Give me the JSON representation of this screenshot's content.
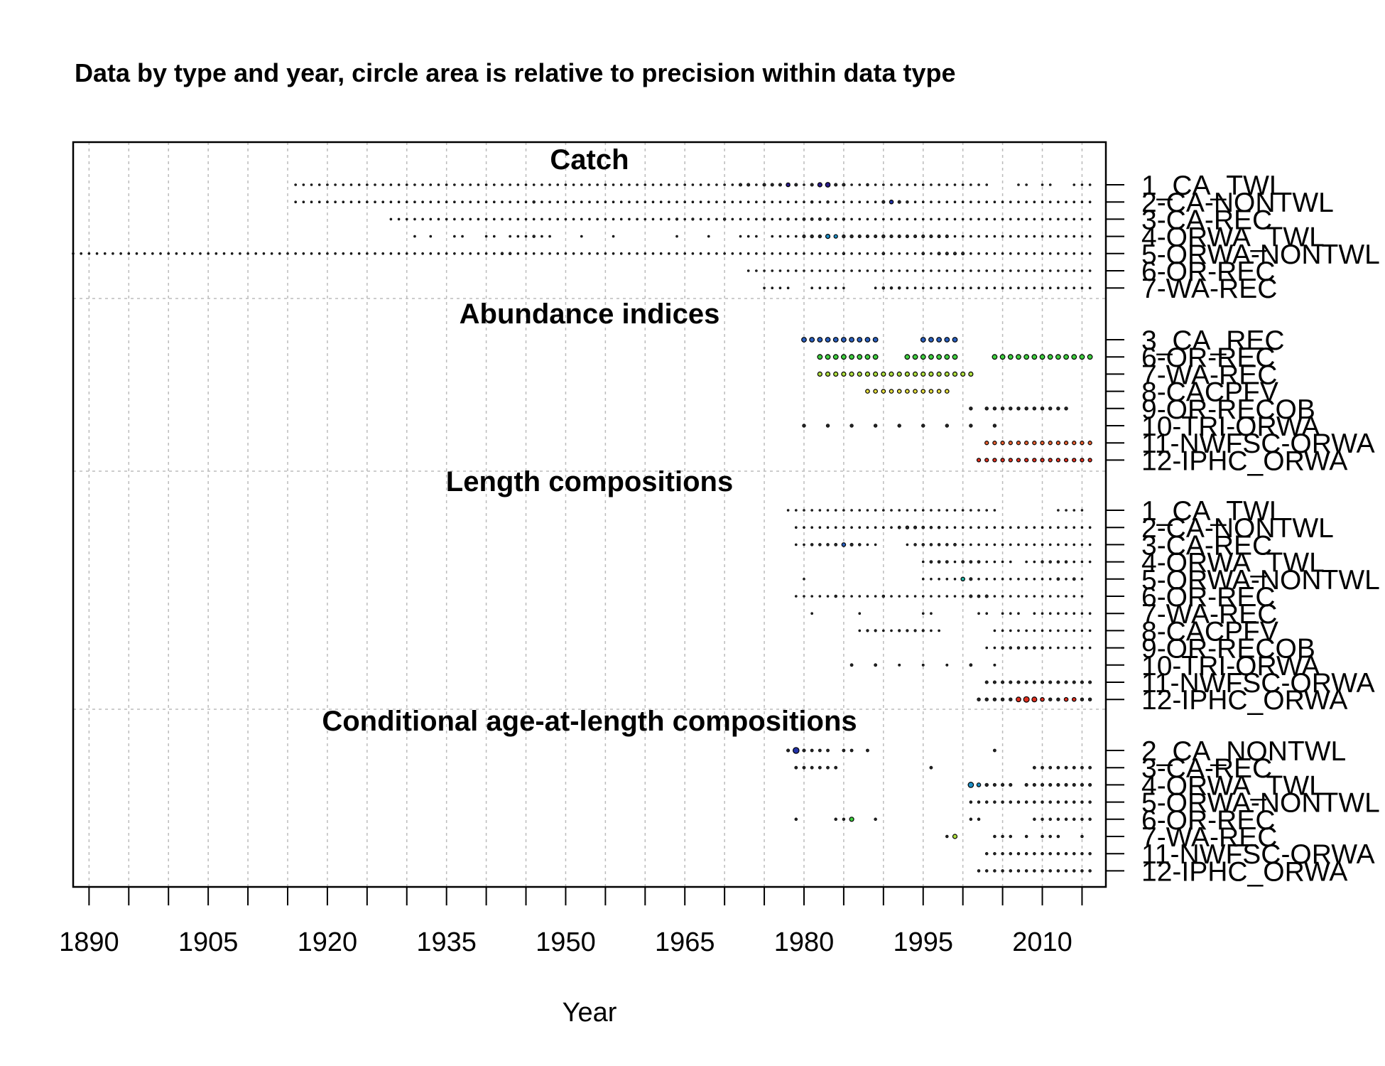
{
  "chart_data": {
    "type": "scatter",
    "title": "Data by type and year, circle area is relative to precision within data type",
    "xlabel": "Year",
    "ylabel": "",
    "xlim": [
      1888,
      2018
    ],
    "x_ticks": [
      1890,
      1905,
      1920,
      1935,
      1950,
      1965,
      1980,
      1995,
      2010
    ],
    "grid": true,
    "colors": {
      "1_CA_TWL": "#2a1a8a",
      "2_CA_NONTWL": "#2232a8",
      "3_CA_REC": "#2a60c0",
      "4_ORWA_TWL": "#1e90c8",
      "5_ORWA_NONTWL": "#20b0a0",
      "6_OR_REC": "#40d040",
      "7_WA_REC": "#b0e040",
      "8_CACPFV": "#e8e040",
      "9_OR_RECOB": "#e8c040",
      "10_TRI_ORWA": "#e89830",
      "11_NWFSC_ORWA": "#e86030",
      "12_IPHC_ORWA": "#e03020"
    },
    "panels": [
      {
        "name": "Catch",
        "rows": [
          {
            "fleet": "1_CA_TWL",
            "label": "1_CA_TWL",
            "years": [
              [
                1916,
                2016
              ]
            ],
            "sizes": {
              "1972": 1.5,
              "1973": 1.5,
              "1975": 1.5,
              "1976": 1.5,
              "1977": 1.5,
              "1978": 1.8,
              "1979": 1.5,
              "1981": 1.5,
              "1982": 2.0,
              "1983": 2.2,
              "1984": 1.5,
              "1985": 1.5,
              "1988": 1.3
            },
            "skip": [
              2004,
              2005,
              2006,
              2009,
              2012,
              2013
            ]
          },
          {
            "fleet": "2_CA_NONTWL",
            "label": "2-CA-NONTWL",
            "years": [
              [
                1916,
                2016
              ]
            ],
            "sizes": {
              "1946": 1.3,
              "1981": 1.3,
              "1983": 1.3,
              "1990": 1.5,
              "1991": 1.8,
              "1992": 1.5,
              "1993": 1.3
            }
          },
          {
            "fleet": "3_CA_REC",
            "label": "3-CA-REC",
            "years": [
              [
                1928,
                2016
              ]
            ],
            "sizes": {
              "1964": 1.2,
              "1966": 1.2,
              "1970": 1.3,
              "1975": 1.3,
              "1978": 1.3,
              "1980": 1.4,
              "1981": 1.4,
              "1982": 1.4,
              "1983": 1.4,
              "1985": 1.3
            }
          },
          {
            "fleet": "4_ORWA_TWL",
            "label": "4-ORWA_TWL",
            "years": [
              [
                1931,
                1931
              ],
              [
                1933,
                1933
              ],
              [
                1936,
                1937
              ],
              [
                1940,
                1941
              ],
              [
                1943,
                1948
              ],
              [
                1952,
                1952
              ],
              [
                1956,
                1956
              ],
              [
                1964,
                1964
              ],
              [
                1968,
                1968
              ],
              [
                1972,
                1974
              ],
              [
                1976,
                2016
              ]
            ],
            "sizes": {
              "1946": 1.3,
              "1980": 1.5,
              "1981": 1.6,
              "1982": 1.6,
              "1983": 2.0,
              "1984": 1.7,
              "1985": 1.6,
              "1986": 1.6,
              "1987": 1.5,
              "1988": 1.5,
              "1989": 1.5,
              "1990": 1.6,
              "1991": 1.5,
              "1992": 1.5,
              "1993": 1.5,
              "1994": 1.5,
              "1995": 1.5,
              "1996": 1.5,
              "1997": 1.5,
              "1998": 1.5
            }
          },
          {
            "fleet": "5_ORWA_NONTWL",
            "label": "5-ORWA-NONTWL",
            "years": [
              [
                1888,
                2016
              ]
            ],
            "sizes": {
              "1942": 1.3,
              "1943": 1.3,
              "1985": 1.3,
              "1990": 1.4,
              "1995": 1.4,
              "1997": 1.5,
              "1998": 1.5,
              "1999": 1.5,
              "2000": 1.5
            }
          },
          {
            "fleet": "6_OR_REC",
            "label": "6-OR-REC",
            "years": [
              [
                1973,
                2016
              ]
            ],
            "sizes": {}
          },
          {
            "fleet": "7_WA_REC",
            "label": "7-WA-REC",
            "years": [
              [
                1975,
                1978
              ],
              [
                1981,
                1985
              ],
              [
                1989,
                2016
              ]
            ],
            "sizes": {
              "1990": 1.3,
              "1991": 1.3,
              "1992": 1.3
            }
          }
        ]
      },
      {
        "name": "Abundance indices",
        "rows": [
          {
            "fleet": "3_CA_REC",
            "label": "3_CA_REC",
            "years": [
              [
                1980,
                1984
              ],
              [
                1985,
                1989
              ],
              [
                1995,
                1999
              ]
            ],
            "sizes": {
              "default": 2.2
            }
          },
          {
            "fleet": "6_OR_REC",
            "label": "6-OR-REC",
            "years": [
              [
                1982,
                1989
              ],
              [
                1993,
                1999
              ],
              [
                2004,
                2016
              ]
            ],
            "sizes": {
              "default": 2.2
            }
          },
          {
            "fleet": "7_WA_REC",
            "label": "7-WA-REC",
            "years": [
              [
                1982,
                2001
              ]
            ],
            "sizes": {
              "default": 2.0
            }
          },
          {
            "fleet": "8_CACPFV",
            "label": "8-CACPFV",
            "years": [
              [
                1988,
                1998
              ]
            ],
            "sizes": {
              "default": 1.8
            }
          },
          {
            "fleet": "9_OR_RECOB",
            "label": "9-OR-RECOB",
            "years": [
              [
                2001,
                2001
              ],
              [
                2003,
                2013
              ]
            ],
            "sizes": {
              "default": 1.6
            }
          },
          {
            "fleet": "10_TRI_ORWA",
            "label": "10-TRI-ORWA",
            "years": [
              [
                1980,
                1980
              ],
              [
                1983,
                1983
              ],
              [
                1986,
                1986
              ],
              [
                1989,
                1989
              ],
              [
                1992,
                1992
              ],
              [
                1995,
                1995
              ],
              [
                1998,
                1998
              ],
              [
                2001,
                2001
              ],
              [
                2004,
                2004
              ]
            ],
            "sizes": {
              "default": 1.6
            }
          },
          {
            "fleet": "11_NWFSC_ORWA",
            "label": "11-NWFSC-ORWA",
            "years": [
              [
                2003,
                2016
              ]
            ],
            "sizes": {
              "default": 1.7
            }
          },
          {
            "fleet": "12_IPHC_ORWA",
            "label": "12-IPHC_ORWA",
            "years": [
              [
                2002,
                2016
              ]
            ],
            "sizes": {
              "default": 1.7
            }
          }
        ]
      },
      {
        "name": "Length compositions",
        "rows": [
          {
            "fleet": "1_CA_TWL",
            "label": "1_CA_TWL",
            "years": [
              [
                1978,
                2004
              ],
              [
                2012,
                2015
              ]
            ],
            "sizes": {}
          },
          {
            "fleet": "2_CA_NONTWL",
            "label": "2-CA-NONTWL",
            "years": [
              [
                1979,
                2016
              ]
            ],
            "sizes": {
              "1992": 1.4,
              "1993": 1.6,
              "1994": 1.5,
              "1995": 1.4,
              "1996": 1.3,
              "1997": 1.3
            }
          },
          {
            "fleet": "3_CA_REC",
            "label": "3-CA-REC",
            "years": [
              [
                1979,
                1989
              ],
              [
                1993,
                2016
              ]
            ],
            "sizes": {
              "1981": 1.3,
              "1982": 1.3,
              "1983": 1.3,
              "1984": 1.4,
              "1985": 1.8,
              "1986": 1.5,
              "1987": 1.3,
              "1994": 1.3,
              "1995": 1.3,
              "1996": 1.3,
              "1997": 1.3,
              "1998": 1.3,
              "1999": 1.4
            }
          },
          {
            "fleet": "4_ORWA_TWL",
            "label": "4-ORWA_TWL",
            "years": [
              [
                1995,
                2006
              ],
              [
                2008,
                2016
              ]
            ],
            "sizes": {
              "1996": 1.4,
              "1997": 1.4,
              "1998": 1.4,
              "2000": 1.4,
              "2001": 1.4,
              "2002": 1.4,
              "2010": 1.3,
              "2011": 1.3,
              "2012": 1.3,
              "2013": 1.3
            }
          },
          {
            "fleet": "5_ORWA_NONTWL",
            "label": "5-ORWA-NONTWL",
            "years": [
              [
                1980,
                1980
              ],
              [
                1995,
                2015
              ]
            ],
            "sizes": {
              "2000": 1.8,
              "2001": 1.5,
              "2012": 1.4,
              "2014": 1.4
            }
          },
          {
            "fleet": "6_OR_REC",
            "label": "6-OR-REC",
            "years": [
              [
                1979,
                2015
              ]
            ],
            "sizes": {
              "1984": 1.3,
              "1990": 1.3,
              "2001": 1.5,
              "2002": 1.4,
              "2003": 1.5
            }
          },
          {
            "fleet": "7_WA_REC",
            "label": "7-WA-REC",
            "years": [
              [
                1981,
                1981
              ],
              [
                1987,
                1987
              ],
              [
                1995,
                2016
              ]
            ],
            "sizes": {},
            "skip": [
              1997,
              1998,
              1999,
              2000,
              2001,
              2004,
              2008
            ]
          },
          {
            "fleet": "8_CACPFV",
            "label": "8-CACPFV",
            "years": [
              [
                1987,
                1997
              ],
              [
                2004,
                2016
              ]
            ],
            "sizes": {
              "1988": 1.2,
              "1989": 1.2,
              "1992": 1.2,
              "1993": 1.2,
              "1994": 1.2,
              "1995": 1.2
            }
          },
          {
            "fleet": "9_OR_RECOB",
            "label": "9-OR-RECOB",
            "years": [
              [
                2003,
                2016
              ]
            ],
            "sizes": {
              "2005": 1.3,
              "2006": 1.3,
              "2007": 1.3,
              "2008": 1.3,
              "2009": 1.3,
              "2010": 1.3
            }
          },
          {
            "fleet": "10_TRI_ORWA",
            "label": "10-TRI-ORWA",
            "years": [
              [
                1986,
                1986
              ],
              [
                1989,
                1989
              ],
              [
                1992,
                1992
              ],
              [
                1995,
                1995
              ],
              [
                1998,
                1998
              ],
              [
                2001,
                2001
              ],
              [
                2004,
                2004
              ]
            ],
            "sizes": {
              "1986": 1.4,
              "1989": 1.4,
              "1992": 1.1,
              "1995": 1.1,
              "1998": 1.1,
              "2001": 1.4,
              "2004": 1.1
            }
          },
          {
            "fleet": "11_NWFSC_ORWA",
            "label": "11-NWFSC-ORWA",
            "years": [
              [
                2003,
                2016
              ]
            ],
            "sizes": {
              "default": 1.5
            }
          },
          {
            "fleet": "12_IPHC_ORWA",
            "label": "12-IPHC_ORWA",
            "years": [
              [
                2002,
                2016
              ]
            ],
            "sizes": {
              "default": 1.6,
              "2007": 2.2,
              "2008": 2.6,
              "2009": 2.3,
              "2010": 1.8,
              "2013": 1.8,
              "2014": 1.8
            }
          }
        ]
      },
      {
        "name": "Conditional age-at-length compositions",
        "rows": [
          {
            "fleet": "2_CA_NONTWL",
            "label": "2_CA_NONTWL",
            "years": [
              [
                1978,
                1983
              ],
              [
                1985,
                1986
              ],
              [
                1988,
                1988
              ],
              [
                2004,
                2004
              ]
            ],
            "sizes": {
              "default": 1.4,
              "1979": 2.8,
              "1978": 1.5,
              "1980": 1.5
            }
          },
          {
            "fleet": "3_CA_REC",
            "label": "3-CA-REC",
            "years": [
              [
                1979,
                1984
              ],
              [
                1996,
                1996
              ],
              [
                2009,
                2016
              ]
            ],
            "sizes": {
              "default": 1.4
            }
          },
          {
            "fleet": "4_ORWA_TWL",
            "label": "4-ORWA_TWL",
            "years": [
              [
                2001,
                2006
              ],
              [
                2008,
                2016
              ]
            ],
            "sizes": {
              "default": 1.5,
              "2001": 2.5,
              "2002": 1.8,
              "2003": 1.6
            }
          },
          {
            "fleet": "5_ORWA_NONTWL",
            "label": "5-ORWA-NONTWL",
            "years": [
              [
                2001,
                2016
              ]
            ],
            "sizes": {
              "default": 1.3
            }
          },
          {
            "fleet": "6_OR_REC",
            "label": "6-OR-REC",
            "years": [
              [
                1979,
                1979
              ],
              [
                1984,
                1986
              ],
              [
                1986,
                1986
              ],
              [
                1989,
                1989
              ],
              [
                2001,
                2002
              ],
              [
                2009,
                2016
              ]
            ],
            "sizes": {
              "default": 1.3,
              "1986": 2.0
            }
          },
          {
            "fleet": "7_WA_REC",
            "label": "7-WA-REC",
            "years": [
              [
                1998,
                1998
              ],
              [
                1999,
                1999
              ],
              [
                2004,
                2006
              ],
              [
                2008,
                2008
              ],
              [
                2010,
                2012
              ],
              [
                2015,
                2015
              ]
            ],
            "sizes": {
              "default": 1.3,
              "1999": 2.0
            }
          },
          {
            "fleet": "11_NWFSC_ORWA",
            "label": "11-NWFSC-ORWA",
            "years": [
              [
                2003,
                2016
              ]
            ],
            "sizes": {
              "default": 1.3
            }
          },
          {
            "fleet": "12_IPHC_ORWA",
            "label": "12-IPHC_ORWA",
            "years": [
              [
                2002,
                2016
              ]
            ],
            "sizes": {
              "default": 1.3
            }
          }
        ]
      }
    ]
  }
}
